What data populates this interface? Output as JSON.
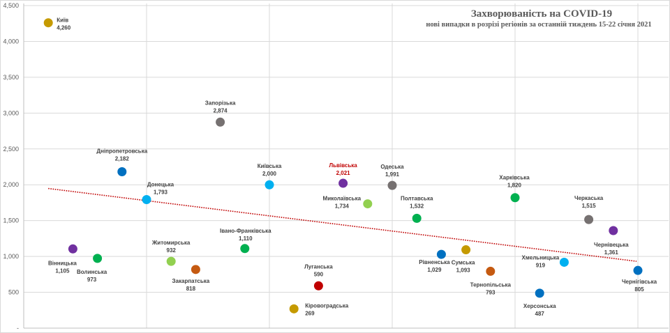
{
  "chart_data": {
    "type": "scatter",
    "title": "Захворюваність на COVID-19",
    "subtitle": "нові випадки  в розрізі регіонів за останній  тиждень 15-22 січня 2021",
    "xlabel": "",
    "ylabel": "",
    "xlim": [
      0,
      25
    ],
    "ylim": [
      0,
      4500
    ],
    "yticks": [
      "-",
      "500",
      "1,000",
      "1,500",
      "2,000",
      "2,500",
      "3,000",
      "3,500",
      "4,000",
      "4,500"
    ],
    "grid": true,
    "legend": "none",
    "trendline": {
      "type": "linear",
      "color": "#C00000",
      "style": "dotted"
    },
    "points": [
      {
        "x": 1,
        "name": "Київ",
        "value": 4260,
        "label": "4,260",
        "color": "#C59A00"
      },
      {
        "x": 2,
        "name": "Вінницька",
        "value": 1105,
        "label": "1,105",
        "color": "#7030A0"
      },
      {
        "x": 3,
        "name": "Волинська",
        "value": 973,
        "label": "973",
        "color": "#00B050"
      },
      {
        "x": 4,
        "name": "Дніпропетровська",
        "value": 2182,
        "label": "2,182",
        "color": "#0070C0"
      },
      {
        "x": 5,
        "name": "Донецька",
        "value": 1793,
        "label": "1,793",
        "color": "#00B0F0"
      },
      {
        "x": 6,
        "name": "Житомирська",
        "value": 932,
        "label": "932",
        "color": "#92D050"
      },
      {
        "x": 7,
        "name": "Закарпатська",
        "value": 818,
        "label": "818",
        "color": "#C55A11"
      },
      {
        "x": 8,
        "name": "Запорізька",
        "value": 2874,
        "label": "2,874",
        "color": "#767171"
      },
      {
        "x": 9,
        "name": "Івано-Франківська",
        "value": 1110,
        "label": "1,110",
        "color": "#00B050"
      },
      {
        "x": 10,
        "name": "Київська",
        "value": 2000,
        "label": "2,000",
        "color": "#00B0F0"
      },
      {
        "x": 11,
        "name": "Кіровоградська",
        "value": 269,
        "label": "269",
        "color": "#C59A00"
      },
      {
        "x": 12,
        "name": "Луганська",
        "value": 590,
        "label": "590",
        "color": "#C00000"
      },
      {
        "x": 13,
        "name": "Львівська",
        "value": 2021,
        "label": "2,021",
        "color": "#7030A0",
        "label_color": "#C00000"
      },
      {
        "x": 14,
        "name": "Миколаївська",
        "value": 1734,
        "label": "1,734",
        "color": "#92D050"
      },
      {
        "x": 15,
        "name": "Одеська",
        "value": 1991,
        "label": "1,991",
        "color": "#767171"
      },
      {
        "x": 16,
        "name": "Полтавська",
        "value": 1532,
        "label": "1,532",
        "color": "#00B050"
      },
      {
        "x": 17,
        "name": "Рівненська",
        "value": 1029,
        "label": "1,029",
        "color": "#0070C0"
      },
      {
        "x": 18,
        "name": "Сумська",
        "value": 1093,
        "label": "1,093",
        "color": "#C59A00"
      },
      {
        "x": 19,
        "name": "Тернопільська",
        "value": 793,
        "label": "793",
        "color": "#C55A11"
      },
      {
        "x": 20,
        "name": "Харківська",
        "value": 1820,
        "label": "1,820",
        "color": "#00B050"
      },
      {
        "x": 21,
        "name": "Херсонська",
        "value": 487,
        "label": "487",
        "color": "#0070C0"
      },
      {
        "x": 22,
        "name": "Хмельницька",
        "value": 919,
        "label": "919",
        "color": "#00B0F0"
      },
      {
        "x": 23,
        "name": "Черкаська",
        "value": 1515,
        "label": "1,515",
        "color": "#767171"
      },
      {
        "x": 24,
        "name": "Чернівецька",
        "value": 1361,
        "label": "1,361",
        "color": "#7030A0"
      },
      {
        "x": 25,
        "name": "Чернігівська",
        "value": 805,
        "label": "805",
        "color": "#0070C0"
      }
    ]
  }
}
